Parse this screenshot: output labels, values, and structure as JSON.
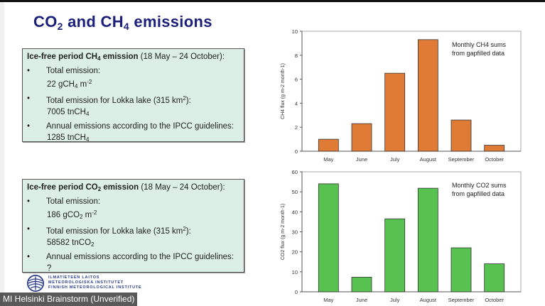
{
  "slide": {
    "title": {
      "a": "CO",
      "a_sub": "2",
      "b": " and CH",
      "b_sub": "4",
      "c": " emissions"
    },
    "ch4_box": {
      "heading_bold": "Ice-free period CH",
      "heading_sub": "4",
      "heading_bold2": " emission",
      "heading_rest": " (18 May – 24 October):",
      "bullet": "•",
      "item1_label": "Total emission:",
      "item1_value_a": "22 gCH",
      "item1_value_sub": "4",
      "item1_value_b": " m",
      "item1_value_sup": "-2",
      "item2_label_a": "Total emission for Lokka lake (315 km",
      "item2_label_sup": "2",
      "item2_label_b": "):",
      "item2_value_a": "7005 tnCH",
      "item2_value_sub": "4",
      "item3_label": "Annual emissions according to the IPCC guidelines:",
      "item3_value_a": "1285 tnCH",
      "item3_value_sub": "4"
    },
    "co2_box": {
      "heading_bold": "Ice-free period CO",
      "heading_sub": "2",
      "heading_bold2": " emission",
      "heading_rest": " (18 May – 24 October):",
      "bullet": "•",
      "item1_label": "Total emission:",
      "item1_value_a": "186 gCO",
      "item1_value_sub": "2",
      "item1_value_b": " m",
      "item1_value_sup": "-2",
      "item2_label_a": "Total emission for Lokka lake (315 km",
      "item2_label_sup": "2",
      "item2_label_b": "):",
      "item2_value_a": "58582 tnCO",
      "item2_value_sub": "2",
      "item3_label": "Annual emissions according to the IPCC guidelines:",
      "item3_value": "?"
    },
    "logo_text": [
      "ILMATIETEEN LAITOS",
      "METEOROLOGISKA INSTITUTET",
      "FINNISH METEOROLOGICAL INSTITUTE"
    ]
  },
  "meeting_label": "MI Helsinki Brainstorm (Unverified)",
  "chart_data": [
    {
      "type": "bar",
      "categories": [
        "May",
        "June",
        "July",
        "August",
        "September",
        "October"
      ],
      "values": [
        1.0,
        2.3,
        6.5,
        9.3,
        2.6,
        0.5
      ],
      "ylabel": "CH4 flux (g m-2 month-1)",
      "ylim": [
        0,
        10
      ],
      "yticks": [
        "0",
        "2",
        "4",
        "6",
        "8",
        "10"
      ],
      "annotation": [
        "Monthly CH4 sums",
        "from gapfilled data"
      ],
      "color": "#e07b36",
      "grid": false
    },
    {
      "type": "bar",
      "categories": [
        "May",
        "June",
        "July",
        "August",
        "September",
        "October"
      ],
      "values": [
        54,
        7.3,
        36.5,
        51.8,
        22,
        14
      ],
      "ylabel": "CO2 flux (g m-2 month-1)",
      "ylim": [
        0,
        60
      ],
      "yticks": [
        "0",
        "10",
        "20",
        "30",
        "40",
        "50",
        "60"
      ],
      "annotation": [
        "Monthly CO2 sums",
        "from gapfilled data"
      ],
      "color": "#57c24f",
      "grid": false
    }
  ]
}
